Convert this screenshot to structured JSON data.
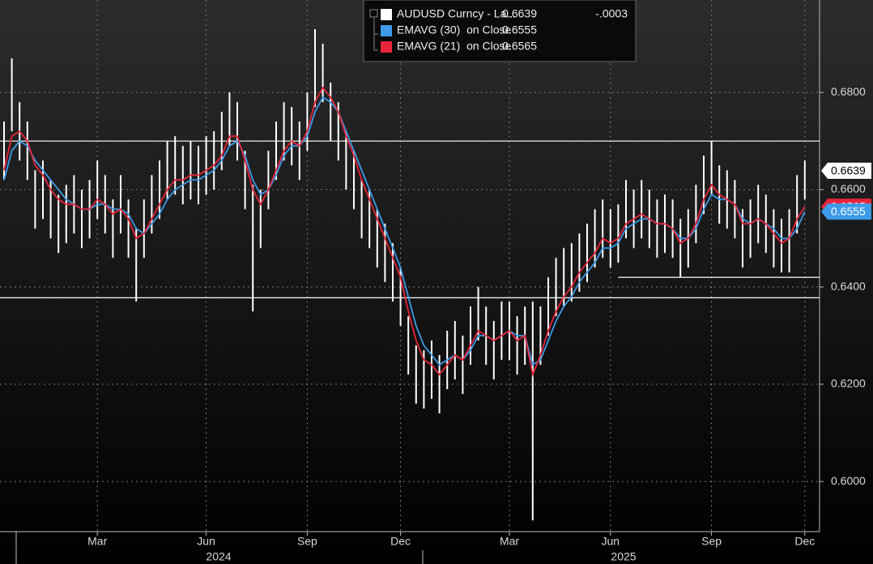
{
  "chart_data": {
    "type": "ohlc",
    "categories": [
      null,
      null,
      null,
      null,
      null,
      null,
      null,
      null,
      null,
      null,
      null,
      null,
      "Mar",
      null,
      null,
      null,
      null,
      null,
      null,
      null,
      null,
      null,
      null,
      null,
      null,
      null,
      "Jun",
      null,
      null,
      null,
      null,
      null,
      null,
      null,
      null,
      null,
      null,
      null,
      null,
      "Sep",
      null,
      null,
      null,
      null,
      null,
      null,
      null,
      null,
      null,
      null,
      null,
      "Dec",
      null,
      null,
      null,
      null,
      null,
      null,
      null,
      null,
      null,
      null,
      null,
      null,
      null,
      "Mar",
      null,
      null,
      null,
      null,
      null,
      null,
      null,
      null,
      null,
      null,
      null,
      null,
      "Jun",
      null,
      null,
      null,
      null,
      null,
      null,
      null,
      null,
      null,
      null,
      null,
      null,
      "Sep",
      null,
      null,
      null,
      null,
      null,
      null,
      null,
      null,
      null,
      null,
      null,
      "Dec"
    ],
    "x_groups": [
      "2024",
      "2025"
    ],
    "ylim": [
      0.5897,
      0.699
    ],
    "yticks": [
      {
        "value": 0.6,
        "label": "0.6000"
      },
      {
        "value": 0.62,
        "label": "0.6200"
      },
      {
        "value": 0.64,
        "label": "0.6400"
      },
      {
        "value": 0.66,
        "label": "0.6600"
      },
      {
        "value": 0.68,
        "label": "0.6800"
      }
    ],
    "grid": true,
    "hlines": [
      0.67,
      0.6378,
      0.642
    ],
    "series": [
      {
        "name": "AUDUSD Curncy - La...",
        "color": "#ffffff",
        "last": 0.6639,
        "change": "-.0003",
        "high": [
          0.674,
          0.687,
          0.678,
          0.674,
          0.664,
          0.666,
          0.662,
          0.659,
          0.661,
          0.663,
          0.66,
          0.662,
          0.666,
          0.663,
          0.658,
          0.663,
          0.658,
          0.652,
          0.658,
          0.663,
          0.666,
          0.67,
          0.671,
          0.669,
          0.67,
          0.669,
          0.671,
          0.672,
          0.676,
          0.68,
          0.678,
          0.668,
          0.661,
          0.66,
          0.668,
          0.674,
          0.678,
          0.677,
          0.674,
          0.68,
          0.693,
          0.69,
          0.682,
          0.678,
          0.672,
          0.668,
          0.662,
          0.66,
          0.656,
          0.653,
          0.649,
          0.644,
          0.634,
          0.628,
          0.627,
          0.629,
          0.626,
          0.631,
          0.633,
          0.63,
          0.636,
          0.64,
          0.636,
          0.633,
          0.637,
          0.637,
          0.634,
          0.636,
          0.637,
          0.636,
          0.642,
          0.646,
          0.648,
          0.649,
          0.651,
          0.653,
          0.656,
          0.658,
          0.656,
          0.657,
          0.662,
          0.66,
          0.662,
          0.66,
          0.658,
          0.659,
          0.658,
          0.654,
          0.656,
          0.661,
          0.667,
          0.67,
          0.665,
          0.664,
          0.662,
          0.656,
          0.658,
          0.661,
          0.659,
          0.656,
          0.654,
          0.656,
          0.663,
          0.666
        ],
        "low": [
          0.662,
          0.672,
          0.666,
          0.662,
          0.652,
          0.654,
          0.65,
          0.647,
          0.649,
          0.651,
          0.648,
          0.65,
          0.654,
          0.651,
          0.646,
          0.651,
          0.646,
          0.637,
          0.646,
          0.651,
          0.654,
          0.658,
          0.659,
          0.657,
          0.658,
          0.657,
          0.659,
          0.66,
          0.664,
          0.669,
          0.666,
          0.656,
          0.635,
          0.648,
          0.656,
          0.662,
          0.666,
          0.665,
          0.662,
          0.668,
          0.677,
          0.678,
          0.67,
          0.666,
          0.66,
          0.656,
          0.65,
          0.648,
          0.644,
          0.641,
          0.637,
          0.632,
          0.622,
          0.616,
          0.615,
          0.617,
          0.614,
          0.619,
          0.621,
          0.618,
          0.624,
          0.629,
          0.624,
          0.621,
          0.625,
          0.625,
          0.622,
          0.624,
          0.592,
          0.624,
          0.63,
          0.634,
          0.636,
          0.637,
          0.639,
          0.641,
          0.644,
          0.646,
          0.644,
          0.645,
          0.65,
          0.648,
          0.65,
          0.648,
          0.646,
          0.647,
          0.646,
          0.642,
          0.644,
          0.649,
          0.655,
          0.659,
          0.653,
          0.652,
          0.65,
          0.644,
          0.646,
          0.649,
          0.647,
          0.644,
          0.643,
          0.643,
          0.651,
          0.658
        ]
      },
      {
        "name": "EMAVG (30)  on Close",
        "color": "#3d9be9",
        "last": 0.6555,
        "values": [
          0.662,
          0.668,
          0.67,
          0.669,
          0.666,
          0.664,
          0.662,
          0.66,
          0.658,
          0.657,
          0.656,
          0.656,
          0.657,
          0.657,
          0.656,
          0.656,
          0.655,
          0.652,
          0.651,
          0.653,
          0.655,
          0.658,
          0.66,
          0.661,
          0.662,
          0.662,
          0.663,
          0.664,
          0.666,
          0.669,
          0.67,
          0.667,
          0.662,
          0.659,
          0.66,
          0.663,
          0.667,
          0.669,
          0.669,
          0.671,
          0.676,
          0.679,
          0.678,
          0.676,
          0.672,
          0.668,
          0.664,
          0.66,
          0.656,
          0.652,
          0.648,
          0.644,
          0.638,
          0.632,
          0.628,
          0.626,
          0.624,
          0.625,
          0.626,
          0.625,
          0.627,
          0.63,
          0.63,
          0.629,
          0.63,
          0.631,
          0.63,
          0.63,
          0.624,
          0.625,
          0.629,
          0.633,
          0.636,
          0.638,
          0.641,
          0.643,
          0.645,
          0.648,
          0.648,
          0.649,
          0.652,
          0.653,
          0.654,
          0.654,
          0.653,
          0.653,
          0.652,
          0.65,
          0.65,
          0.652,
          0.656,
          0.659,
          0.658,
          0.658,
          0.657,
          0.654,
          0.653,
          0.654,
          0.653,
          0.652,
          0.65,
          0.65,
          0.652,
          0.6555
        ]
      },
      {
        "name": "EMAVG (21)  on Close",
        "color": "#e8253a",
        "last": 0.6565,
        "values": [
          0.664,
          0.671,
          0.672,
          0.67,
          0.665,
          0.663,
          0.66,
          0.658,
          0.657,
          0.657,
          0.656,
          0.656,
          0.658,
          0.657,
          0.655,
          0.656,
          0.654,
          0.65,
          0.651,
          0.654,
          0.657,
          0.66,
          0.662,
          0.662,
          0.663,
          0.663,
          0.664,
          0.665,
          0.667,
          0.671,
          0.671,
          0.666,
          0.66,
          0.657,
          0.66,
          0.664,
          0.668,
          0.67,
          0.669,
          0.672,
          0.678,
          0.681,
          0.679,
          0.676,
          0.671,
          0.667,
          0.662,
          0.658,
          0.654,
          0.65,
          0.646,
          0.642,
          0.635,
          0.629,
          0.625,
          0.624,
          0.622,
          0.624,
          0.626,
          0.625,
          0.628,
          0.631,
          0.63,
          0.629,
          0.63,
          0.631,
          0.629,
          0.63,
          0.622,
          0.626,
          0.631,
          0.635,
          0.638,
          0.64,
          0.643,
          0.645,
          0.647,
          0.65,
          0.649,
          0.65,
          0.653,
          0.654,
          0.655,
          0.654,
          0.653,
          0.653,
          0.652,
          0.649,
          0.65,
          0.653,
          0.658,
          0.661,
          0.659,
          0.658,
          0.657,
          0.653,
          0.653,
          0.654,
          0.653,
          0.651,
          0.649,
          0.65,
          0.654,
          0.6565
        ]
      }
    ]
  }
}
